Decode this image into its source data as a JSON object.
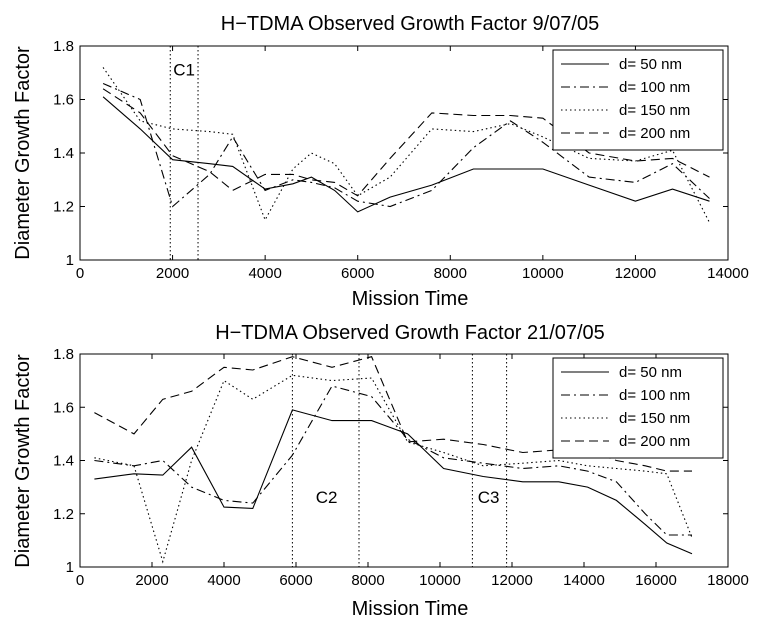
{
  "chart_data": [
    {
      "type": "line",
      "title": "H−TDMA Observed Growth Factor 9/07/05",
      "xlabel": "Mission Time",
      "ylabel": "Diameter Growth Factor",
      "xlim": [
        0,
        14000
      ],
      "ylim": [
        1,
        1.8
      ],
      "xticks": [
        0,
        2000,
        4000,
        6000,
        8000,
        10000,
        12000,
        14000
      ],
      "yticks": [
        1,
        1.2,
        1.4,
        1.6,
        1.8
      ],
      "tick_labels_x": [
        "0",
        "2000",
        "4000",
        "6000",
        "8000",
        "10000",
        "12000",
        "14000"
      ],
      "tick_labels_y": [
        "1",
        "1.2",
        "1.4",
        "1.6",
        "1.8"
      ],
      "grid": false,
      "legend_position": "top-right",
      "vlines": [
        1950,
        2550
      ],
      "annotations": [
        {
          "text": "C1",
          "x": 2250,
          "y": 1.69
        }
      ],
      "series": [
        {
          "name": "d= 50 nm",
          "dash": "solid",
          "x": [
            500,
            1300,
            2000,
            2800,
            3300,
            4000,
            4600,
            5000,
            5500,
            6000,
            6700,
            7600,
            8500,
            9300,
            10000,
            11000,
            12000,
            12800,
            13600
          ],
          "y": [
            1.61,
            1.49,
            1.375,
            1.36,
            1.35,
            1.265,
            1.285,
            1.31,
            1.26,
            1.18,
            1.235,
            1.28,
            1.34,
            1.34,
            1.34,
            1.28,
            1.22,
            1.265,
            1.22
          ]
        },
        {
          "name": "d= 100 nm",
          "dash": "dashdot",
          "x": [
            500,
            1300,
            2000,
            2800,
            3300,
            4000,
            4600,
            5000,
            5500,
            6000,
            6700,
            7600,
            8500,
            9300,
            10000,
            11000,
            12000,
            12800,
            13600
          ],
          "y": [
            1.66,
            1.6,
            1.2,
            1.32,
            1.46,
            1.26,
            1.3,
            1.29,
            1.27,
            1.22,
            1.2,
            1.26,
            1.42,
            1.52,
            1.44,
            1.31,
            1.29,
            1.36,
            1.23
          ]
        },
        {
          "name": "d= 150 nm",
          "dash": "dotted",
          "x": [
            500,
            1300,
            2000,
            2800,
            3300,
            4000,
            4600,
            5000,
            5500,
            6000,
            6700,
            7600,
            8500,
            9300,
            10000,
            11000,
            12000,
            12800,
            13600
          ],
          "y": [
            1.72,
            1.52,
            1.49,
            1.48,
            1.47,
            1.15,
            1.34,
            1.4,
            1.36,
            1.24,
            1.31,
            1.49,
            1.48,
            1.51,
            1.46,
            1.38,
            1.37,
            1.41,
            1.14
          ]
        },
        {
          "name": "d= 200 nm",
          "dash": "dashed",
          "x": [
            500,
            1300,
            2000,
            2800,
            3300,
            4000,
            4600,
            5000,
            5500,
            6000,
            6700,
            7600,
            8500,
            9300,
            10000,
            11000,
            12000,
            12800,
            13600
          ],
          "y": [
            1.64,
            1.55,
            1.39,
            1.33,
            1.26,
            1.32,
            1.32,
            1.3,
            1.29,
            1.24,
            1.38,
            1.55,
            1.54,
            1.54,
            1.53,
            1.4,
            1.37,
            1.38,
            1.31
          ]
        }
      ]
    },
    {
      "type": "line",
      "title": "H−TDMA Observed Growth Factor 21/07/05",
      "xlabel": "Mission Time",
      "ylabel": "Diameter Growth Factor",
      "xlim": [
        0,
        18000
      ],
      "ylim": [
        1,
        1.8
      ],
      "xticks": [
        0,
        2000,
        4000,
        6000,
        8000,
        10000,
        12000,
        14000,
        16000,
        18000
      ],
      "yticks": [
        1,
        1.2,
        1.4,
        1.6,
        1.8
      ],
      "tick_labels_x": [
        "0",
        "2000",
        "4000",
        "6000",
        "8000",
        "10000",
        "12000",
        "14000",
        "16000",
        "18000"
      ],
      "tick_labels_y": [
        "1",
        "1.2",
        "1.4",
        "1.6",
        "1.8"
      ],
      "grid": false,
      "legend_position": "top-right",
      "vlines": [
        5900,
        7750,
        10900,
        11850
      ],
      "annotations": [
        {
          "text": "C2",
          "x": 6850,
          "y": 1.24
        },
        {
          "text": "C3",
          "x": 11350,
          "y": 1.24
        }
      ],
      "series": [
        {
          "name": "d= 50 nm",
          "dash": "solid",
          "x": [
            400,
            1500,
            2300,
            3100,
            4000,
            4800,
            5900,
            7000,
            8100,
            9100,
            10100,
            11200,
            12300,
            13300,
            14100,
            14900,
            15700,
            16300,
            17000
          ],
          "y": [
            1.33,
            1.35,
            1.345,
            1.45,
            1.225,
            1.22,
            1.59,
            1.55,
            1.55,
            1.5,
            1.37,
            1.34,
            1.32,
            1.32,
            1.3,
            1.25,
            1.16,
            1.09,
            1.05
          ]
        },
        {
          "name": "d= 100 nm",
          "dash": "dashdot",
          "x": [
            400,
            1500,
            2300,
            3100,
            4000,
            4800,
            5900,
            7000,
            8100,
            9100,
            10100,
            11200,
            12300,
            13300,
            14100,
            14900,
            15700,
            16300,
            17000
          ],
          "y": [
            1.4,
            1.38,
            1.4,
            1.3,
            1.25,
            1.24,
            1.42,
            1.68,
            1.64,
            1.48,
            1.41,
            1.39,
            1.37,
            1.38,
            1.36,
            1.32,
            1.2,
            1.12,
            1.12
          ]
        },
        {
          "name": "d= 150 nm",
          "dash": "dotted",
          "x": [
            400,
            1500,
            2300,
            3100,
            4000,
            4800,
            5900,
            7000,
            8100,
            9100,
            10100,
            11200,
            12300,
            13300,
            14100,
            14900,
            15700,
            16300,
            17000
          ],
          "y": [
            1.41,
            1.38,
            1.02,
            1.4,
            1.7,
            1.63,
            1.72,
            1.7,
            1.71,
            1.47,
            1.43,
            1.38,
            1.39,
            1.4,
            1.38,
            1.37,
            1.36,
            1.35,
            1.11
          ]
        },
        {
          "name": "d= 200 nm",
          "dash": "dashed",
          "x": [
            400,
            1500,
            2300,
            3100,
            4000,
            4800,
            5900,
            7000,
            8100,
            9100,
            10100,
            11200,
            12300,
            13300,
            14100,
            14900,
            15700,
            16300,
            17000
          ],
          "y": [
            1.58,
            1.5,
            1.63,
            1.66,
            1.75,
            1.74,
            1.79,
            1.75,
            1.79,
            1.47,
            1.48,
            1.46,
            1.43,
            1.44,
            1.44,
            1.4,
            1.38,
            1.36,
            1.36
          ]
        }
      ]
    }
  ]
}
